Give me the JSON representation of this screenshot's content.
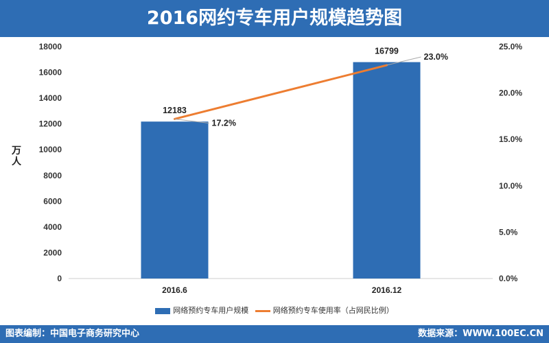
{
  "header": {
    "title": "2016网约专车用户规模趋势图"
  },
  "footer": {
    "credit": "图表编制：中国电子商务研究中心",
    "source": "数据来源：WWW.100EC.CN"
  },
  "colors": {
    "brand": "#2e6db4",
    "bar": "#2e6db4",
    "line": "#ed7d31"
  },
  "chart_data": {
    "type": "bar",
    "categories": [
      "2016.6",
      "2016.12"
    ],
    "ylabel": "万人",
    "ylim": [
      0,
      18000
    ],
    "yticks": [
      "0",
      "2000",
      "4000",
      "6000",
      "8000",
      "10000",
      "12000",
      "14000",
      "16000",
      "18000"
    ],
    "y2lim": [
      0,
      25
    ],
    "y2ticks": [
      "0.0%",
      "5.0%",
      "10.0%",
      "15.0%",
      "20.0%",
      "25.0%"
    ],
    "legend_position": "bottom",
    "grid": false,
    "series": [
      {
        "name": "网络预约专车用户规模",
        "type": "bar",
        "axis": "left",
        "values": [
          12183,
          16799
        ],
        "labels": [
          "12183",
          "16799"
        ]
      },
      {
        "name": "网络预约专车使用率（占网民比例）",
        "type": "line",
        "axis": "right",
        "values": [
          17.2,
          23.0
        ],
        "labels": [
          "17.2%",
          "23.0%"
        ]
      }
    ]
  }
}
